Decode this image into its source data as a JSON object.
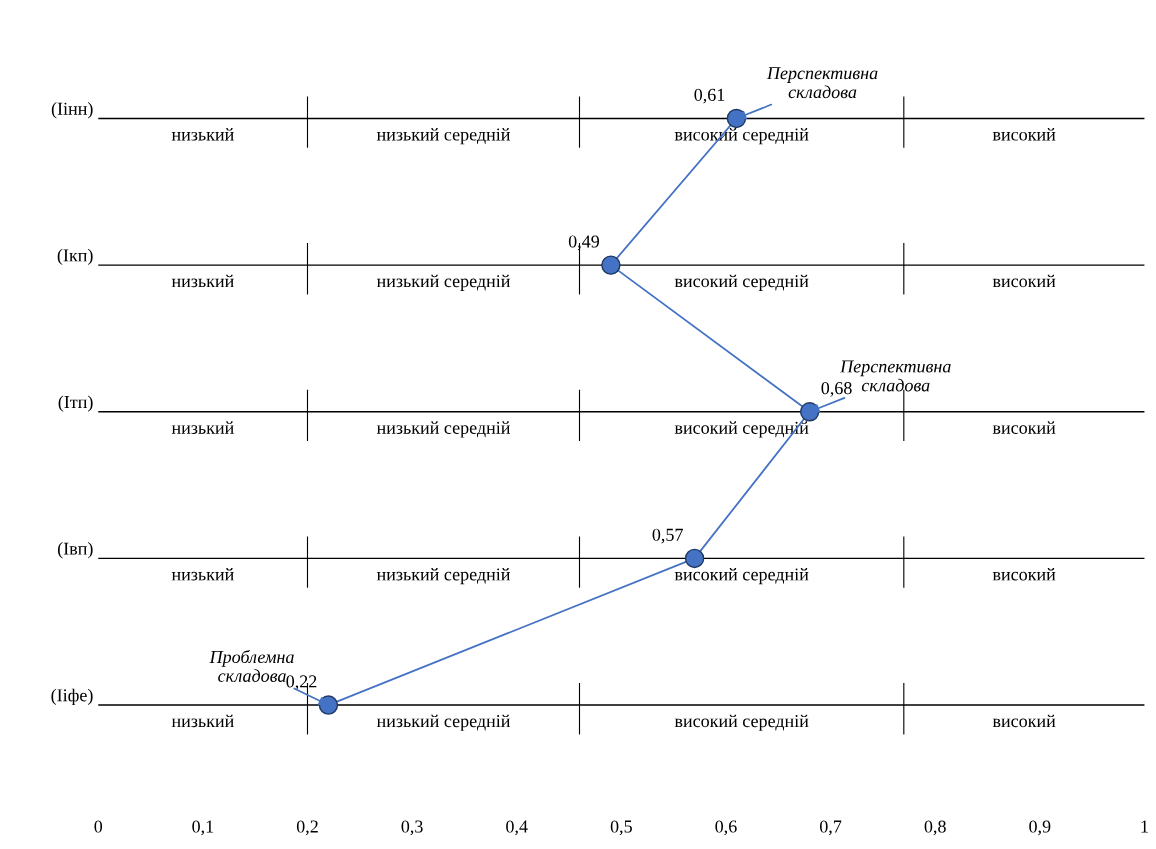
{
  "chart_data": {
    "type": "line",
    "orientation": "horizontal",
    "categories": [
      "(Iінн)",
      "(Iкп)",
      "(Iтп)",
      "(Iвп)",
      "(Iіфе)"
    ],
    "values": [
      0.61,
      0.49,
      0.68,
      0.57,
      0.22
    ],
    "value_labels": [
      "0,61",
      "0,49",
      "0,68",
      "0,57",
      "0,22"
    ],
    "color": "#4472c4",
    "marker": "circle",
    "line_style": "solid",
    "grid": "y",
    "xlim": [
      0,
      1
    ],
    "xticks": [
      {
        "value": 0,
        "label": "0"
      },
      {
        "value": 0.1,
        "label": "0,1"
      },
      {
        "value": 0.2,
        "label": "0,2"
      },
      {
        "value": 0.3,
        "label": "0,3"
      },
      {
        "value": 0.4,
        "label": "0,4"
      },
      {
        "value": 0.5,
        "label": "0,5"
      },
      {
        "value": 0.6,
        "label": "0,6"
      },
      {
        "value": 0.7,
        "label": "0,7"
      },
      {
        "value": 0.8,
        "label": "0,8"
      },
      {
        "value": 0.9,
        "label": "0,9"
      },
      {
        "value": 1,
        "label": "1"
      }
    ],
    "ref_lines": [
      {
        "axis": "x",
        "value": 0.2,
        "color": "#000000"
      },
      {
        "axis": "x",
        "value": 0.46,
        "color": "#000000"
      },
      {
        "axis": "x",
        "value": 0.77,
        "color": "#000000"
      }
    ],
    "annotations": [
      {
        "text": "Перспективна\nскладова",
        "x": 0.61,
        "y": "(Iінн)"
      },
      {
        "text": "Перспективна\nскладова",
        "x": 0.68,
        "y": "(Iтп)"
      },
      {
        "text": "Проблемна\nскладова",
        "x": 0.22,
        "y": "(Iіфе)"
      },
      "низький",
      "низький середній",
      "високий середній",
      "високий",
      "низький",
      "низький середній",
      "високий середній",
      "високий",
      "низький",
      "низький середній",
      "високий середній",
      "високий",
      "низький",
      "низький середній",
      "високий середній",
      "високий",
      "низький",
      "низький середній",
      "високий середній",
      "високий"
    ]
  }
}
